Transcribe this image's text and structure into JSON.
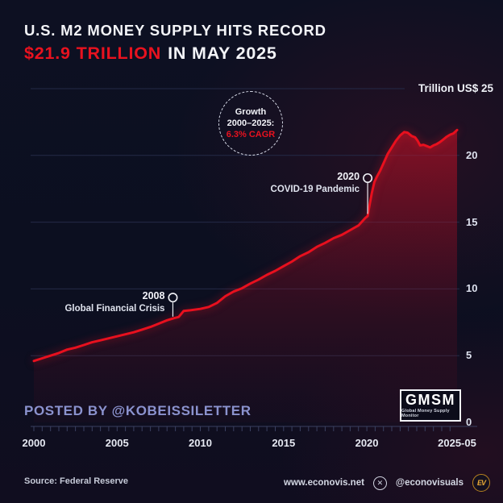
{
  "colors": {
    "background": "#0c0f20",
    "line_red": "#e8101e",
    "accent_red": "#e8121f",
    "grid": "#242a47",
    "axis": "#3a4060",
    "posted_blue": "#8b93cf",
    "gold": "#e8a936",
    "text_white": "#f3f4f8"
  },
  "header": {
    "line1": "U.S. M2 MONEY SUPPLY HITS RECORD",
    "line2_red": "$21.9 TRILLION",
    "line2_white": "IN MAY 2025"
  },
  "chart_data": {
    "type": "area",
    "title": "U.S. M2 Money Supply, 2000 to May 2025",
    "unit_label": "Trillion US$ 25",
    "ylabel": "Trillion US$",
    "ylim": [
      0,
      25
    ],
    "xlim": [
      2000,
      2025.42
    ],
    "y_ticks": [
      0,
      5,
      10,
      15,
      20
    ],
    "x_ticks": [
      {
        "label": "2000",
        "year": 2000
      },
      {
        "label": "2005",
        "year": 2005
      },
      {
        "label": "2010",
        "year": 2010
      },
      {
        "label": "2015",
        "year": 2015
      },
      {
        "label": "2020",
        "year": 2020
      },
      {
        "label": "2025-05",
        "year": 2025.42
      }
    ],
    "grid": "horizontal-only",
    "legend": "none",
    "final_value_trillion": 21.9,
    "points": [
      [
        2000,
        4.6
      ],
      [
        2000.5,
        4.8
      ],
      [
        2001,
        5.0
      ],
      [
        2001.5,
        5.2
      ],
      [
        2002,
        5.45
      ],
      [
        2002.5,
        5.6
      ],
      [
        2003,
        5.8
      ],
      [
        2003.5,
        6.0
      ],
      [
        2004,
        6.15
      ],
      [
        2004.5,
        6.3
      ],
      [
        2005,
        6.45
      ],
      [
        2005.5,
        6.6
      ],
      [
        2006,
        6.75
      ],
      [
        2006.5,
        6.95
      ],
      [
        2007,
        7.15
      ],
      [
        2007.5,
        7.4
      ],
      [
        2008,
        7.65
      ],
      [
        2008.4,
        7.8
      ],
      [
        2008.7,
        7.9
      ],
      [
        2009,
        8.35
      ],
      [
        2009.4,
        8.4
      ],
      [
        2010,
        8.5
      ],
      [
        2010.5,
        8.65
      ],
      [
        2011,
        8.95
      ],
      [
        2011.5,
        9.45
      ],
      [
        2012,
        9.8
      ],
      [
        2012.5,
        10.05
      ],
      [
        2013,
        10.4
      ],
      [
        2013.5,
        10.7
      ],
      [
        2014,
        11.05
      ],
      [
        2014.5,
        11.35
      ],
      [
        2015,
        11.7
      ],
      [
        2015.5,
        12.05
      ],
      [
        2016,
        12.45
      ],
      [
        2016.5,
        12.75
      ],
      [
        2017,
        13.15
      ],
      [
        2017.5,
        13.45
      ],
      [
        2018,
        13.8
      ],
      [
        2018.5,
        14.05
      ],
      [
        2019,
        14.4
      ],
      [
        2019.5,
        14.75
      ],
      [
        2019.9,
        15.3
      ],
      [
        2020.05,
        15.45
      ],
      [
        2020.15,
        16.2
      ],
      [
        2020.3,
        17.2
      ],
      [
        2020.45,
        18.0
      ],
      [
        2020.6,
        18.4
      ],
      [
        2020.8,
        18.85
      ],
      [
        2021,
        19.4
      ],
      [
        2021.25,
        20.1
      ],
      [
        2021.5,
        20.6
      ],
      [
        2021.75,
        21.1
      ],
      [
        2022,
        21.5
      ],
      [
        2022.25,
        21.75
      ],
      [
        2022.45,
        21.7
      ],
      [
        2022.7,
        21.45
      ],
      [
        2022.9,
        21.35
      ],
      [
        2023.05,
        21.1
      ],
      [
        2023.2,
        20.75
      ],
      [
        2023.4,
        20.8
      ],
      [
        2023.6,
        20.7
      ],
      [
        2023.8,
        20.6
      ],
      [
        2024,
        20.75
      ],
      [
        2024.2,
        20.85
      ],
      [
        2024.4,
        21.0
      ],
      [
        2024.6,
        21.2
      ],
      [
        2024.8,
        21.4
      ],
      [
        2025,
        21.55
      ],
      [
        2025.2,
        21.65
      ],
      [
        2025.42,
        21.9
      ]
    ],
    "annotations": [
      {
        "year": 2008.35,
        "label": "2008",
        "sublabel": "Global Financial Crisis",
        "circle_value": 9.35,
        "curve_value": 7.8
      },
      {
        "year": 2020.05,
        "label": "2020",
        "sublabel": "COVID-19 Pandemic",
        "circle_value": 18.3,
        "curve_value": 15.5
      }
    ],
    "badge": {
      "line1": "Growth",
      "line2": "2000–2025:",
      "line3": "6.3% CAGR"
    }
  },
  "gmsm": {
    "title": "GMSM",
    "subtitle": "Global Money Supply Monitor"
  },
  "posted_by": "POSTED BY @KOBEISSILETTER",
  "footer": {
    "source": "Source: Federal Reserve",
    "website": "www.econovis.net",
    "x_glyph": "✕",
    "handle": "@econovisuals",
    "ev_logo_text": "EV"
  }
}
